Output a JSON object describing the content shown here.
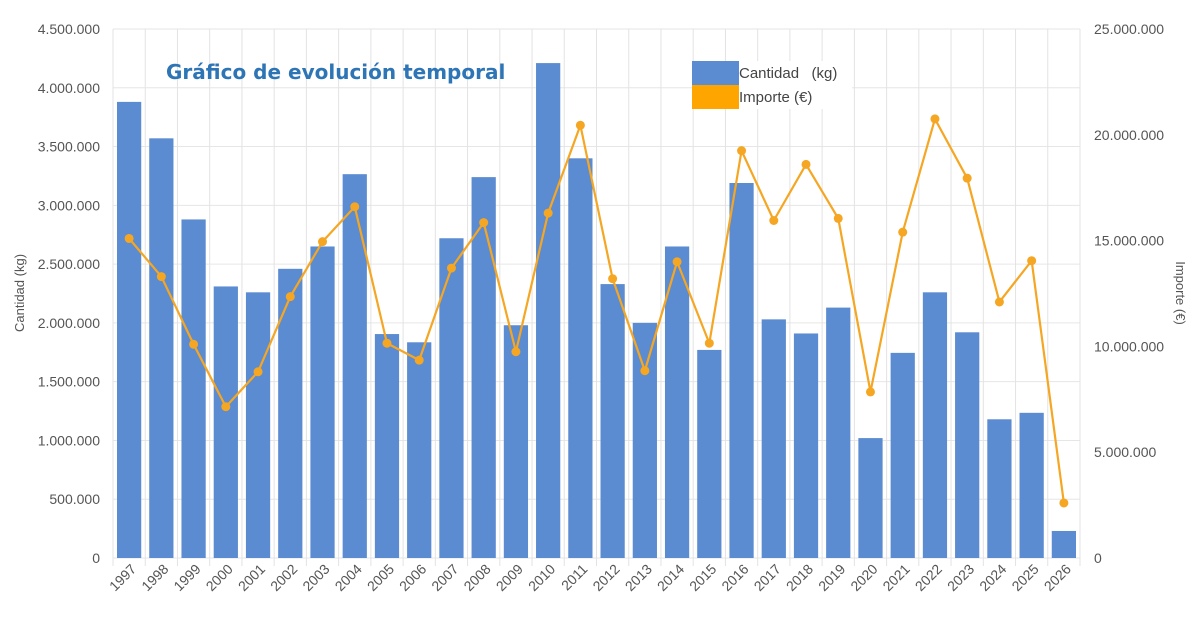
{
  "chart_data": {
    "type": "bar+line",
    "title": "Gráfico de evolución temporal",
    "categories": [
      "1997",
      "1998",
      "1999",
      "2000",
      "2001",
      "2002",
      "2003",
      "2004",
      "2005",
      "2006",
      "2007",
      "2008",
      "2009",
      "2010",
      "2011",
      "2012",
      "2013",
      "2014",
      "2015",
      "2016",
      "2017",
      "2018",
      "2019",
      "2020",
      "2021",
      "2022",
      "2023",
      "2024",
      "2025",
      "2026"
    ],
    "series": [
      {
        "name": "Cantidad   (kg)",
        "type": "bar",
        "axis": "left",
        "color": "#5b8bd0",
        "values": [
          3880000,
          3570000,
          2880000,
          2310000,
          2260000,
          2460000,
          2650000,
          3265000,
          1905000,
          1835000,
          2720000,
          3240000,
          1980000,
          4210000,
          3400000,
          2330000,
          2000000,
          2650000,
          1770000,
          3190000,
          2030000,
          1910000,
          2130000,
          1020000,
          1745000,
          2260000,
          1920000,
          1180000,
          1235000,
          230000
        ]
      },
      {
        "name": "Importe (€)",
        "type": "line",
        "axis": "right",
        "color": "#f5a623",
        "values": [
          15100000,
          13300000,
          10100000,
          7150000,
          8800000,
          12350000,
          14950000,
          16600000,
          10150000,
          9350000,
          13700000,
          15850000,
          9750000,
          16300000,
          20450000,
          13200000,
          8850000,
          14000000,
          10150000,
          19250000,
          15950000,
          18600000,
          16050000,
          7850000,
          15400000,
          20750000,
          17950000,
          12100000,
          14050000,
          2600000
        ]
      }
    ],
    "ylabel": "Cantidad   (kg)",
    "y2label": "Importe (€)",
    "ylim": [
      0,
      4500000
    ],
    "y2lim": [
      0,
      25000000
    ],
    "yticks": [
      "0",
      "500.000",
      "1.000.000",
      "1.500.000",
      "2.000.000",
      "2.500.000",
      "3.000.000",
      "3.500.000",
      "4.000.000",
      "4.500.000"
    ],
    "y2ticks": [
      "0",
      "5.000.000",
      "10.000.000",
      "15.000.000",
      "20.000.000",
      "25.000.000"
    ],
    "grid": true,
    "legend": "top-right"
  }
}
